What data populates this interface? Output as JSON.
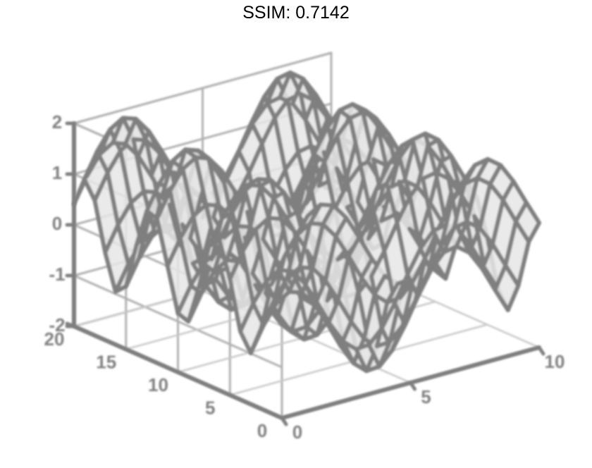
{
  "chart_data": {
    "type": "surface",
    "title": "SSIM: 0.7142",
    "xlabel": "",
    "ylabel": "",
    "zlabel": "",
    "x_ticks": [
      "0",
      "5",
      "10"
    ],
    "y_ticks": [
      "0",
      "5",
      "10",
      "15",
      "20"
    ],
    "z_ticks": [
      "-2",
      "-1",
      "0",
      "1",
      "2"
    ],
    "xlim": [
      0,
      10
    ],
    "ylim": [
      0,
      20
    ],
    "zlim": [
      -2,
      2
    ],
    "grid": true,
    "surface": {
      "style": "wireframe",
      "function": "z = sin(x) + cos(y)",
      "x_samples": 21,
      "y_samples": 21,
      "color": "#7f7f7f",
      "fill": "#e6e6e6"
    }
  },
  "colors": {
    "line": "#7f7f7f",
    "grid": "#b0b0b0",
    "face": "#e8e8e8",
    "title": "#000000"
  }
}
